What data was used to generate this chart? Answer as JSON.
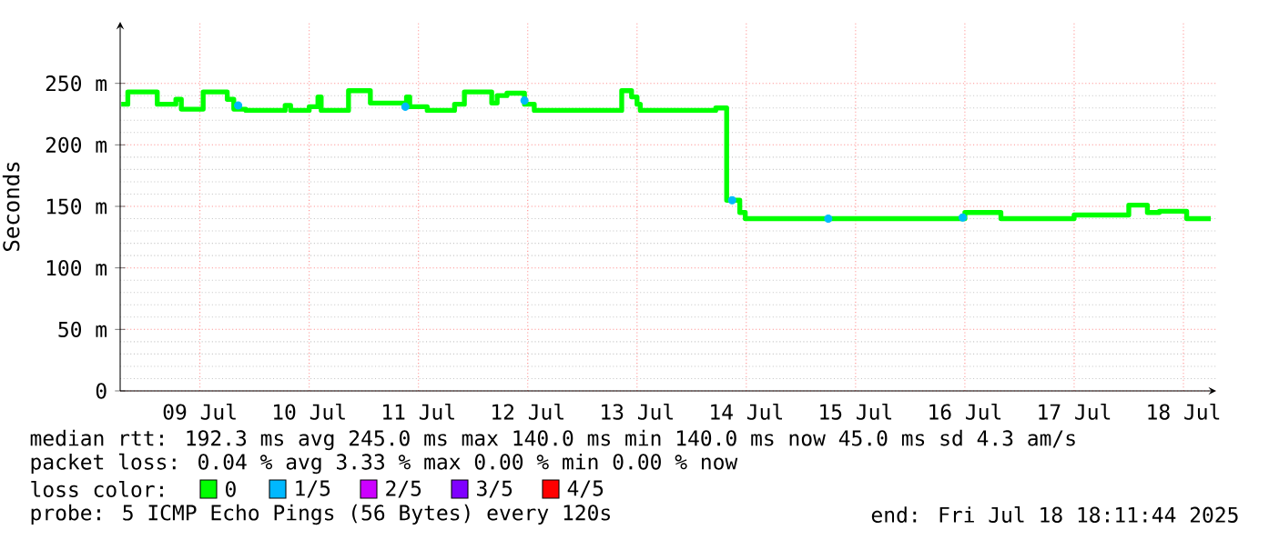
{
  "chart_data": {
    "type": "step",
    "ylabel": "Seconds",
    "xlim": [
      "2025-07-08T18:29",
      "2025-07-18T19:12"
    ],
    "ylim": [
      0,
      300
    ],
    "xticks": [
      {
        "value": "2025-07-09T12:00",
        "label": "09 Jul"
      },
      {
        "value": "2025-07-10T12:00",
        "label": "10 Jul"
      },
      {
        "value": "2025-07-11T12:00",
        "label": "11 Jul"
      },
      {
        "value": "2025-07-12T12:00",
        "label": "12 Jul"
      },
      {
        "value": "2025-07-13T12:00",
        "label": "13 Jul"
      },
      {
        "value": "2025-07-14T12:00",
        "label": "14 Jul"
      },
      {
        "value": "2025-07-15T12:00",
        "label": "15 Jul"
      },
      {
        "value": "2025-07-16T12:00",
        "label": "16 Jul"
      },
      {
        "value": "2025-07-17T12:00",
        "label": "17 Jul"
      },
      {
        "value": "2025-07-18T12:00",
        "label": "18 Jul"
      }
    ],
    "yticks": [
      0,
      {
        "value": 50,
        "label": "50 m"
      },
      {
        "value": 100,
        "label": "100 m"
      },
      {
        "value": 150,
        "label": "150 m"
      },
      {
        "value": 200,
        "label": "200 m"
      },
      {
        "value": 250,
        "label": "250 m"
      }
    ],
    "grid": true,
    "legend": "bottom",
    "series": [
      {
        "name": "0",
        "color": "#00ff00",
        "x": [
          "2025-07-08T18:43",
          "2025-07-08T20:10",
          "2025-07-09T02:38",
          "2025-07-09T06:43",
          "2025-07-09T07:55",
          "2025-07-09T12:43",
          "2025-07-09T18:00",
          "2025-07-09T19:26",
          "2025-07-09T22:05",
          "2025-07-10T06:43",
          "2025-07-10T07:55",
          "2025-07-10T12:00",
          "2025-07-10T13:55",
          "2025-07-10T14:38",
          "2025-07-10T20:38",
          "2025-07-11T01:26",
          "2025-07-11T09:22",
          "2025-07-11T10:05",
          "2025-07-11T13:55",
          "2025-07-11T19:55",
          "2025-07-11T22:05",
          "2025-07-12T04:05",
          "2025-07-12T05:17",
          "2025-07-12T07:26",
          "2025-07-12T11:17",
          "2025-07-12T13:26",
          "2025-07-13T08:38",
          "2025-07-13T10:48",
          "2025-07-13T12:00",
          "2025-07-13T12:43",
          "2025-07-14T05:17",
          "2025-07-14T07:41",
          "2025-07-14T10:34",
          "2025-07-14T11:46",
          "2025-07-16T12:00",
          "2025-07-16T19:55",
          "2025-07-17T12:00",
          "2025-07-18T00:00",
          "2025-07-18T04:05",
          "2025-07-18T06:43",
          "2025-07-18T12:43",
          "2025-07-18T18:00"
        ],
        "values": [
          233,
          243,
          233,
          237,
          229,
          243,
          237,
          229,
          228,
          232,
          228,
          231,
          239,
          228,
          244,
          234,
          239,
          231,
          228,
          233,
          243,
          234,
          240,
          242,
          233,
          228,
          244,
          239,
          233,
          228,
          230,
          155,
          145,
          140,
          145,
          140,
          143,
          151,
          145,
          146,
          140,
          140
        ]
      },
      {
        "name": "1/5",
        "color": "#00b8ff",
        "type": "scatter",
        "x": [
          "2025-07-09T20:24",
          "2025-07-11T09:07",
          "2025-07-12T11:17",
          "2025-07-14T08:53",
          "2025-07-15T06:00",
          "2025-07-16T11:31"
        ],
        "values": [
          232,
          231,
          236,
          155,
          140,
          141
        ]
      },
      {
        "name": "2/5",
        "color": "#cc00ff",
        "type": "scatter"
      },
      {
        "name": "3/5",
        "color": "#7f00ff",
        "type": "scatter"
      },
      {
        "name": "4/5",
        "color": "#ff0000",
        "type": "scatter"
      }
    ],
    "annotations": [
      "median rtt:  192.3 ms avg  245.0 ms max  140.0 ms min  140.0 ms now  45.0 ms sd  4.3   am/s",
      "packet loss: 0.04 % avg  3.33 % max  0.00 % min  0.00 % now",
      "loss color:",
      "probe:       5 ICMP Echo Pings (56 Bytes) every 120s",
      "end: Fri Jul 18 18:11:44 2025"
    ]
  }
}
